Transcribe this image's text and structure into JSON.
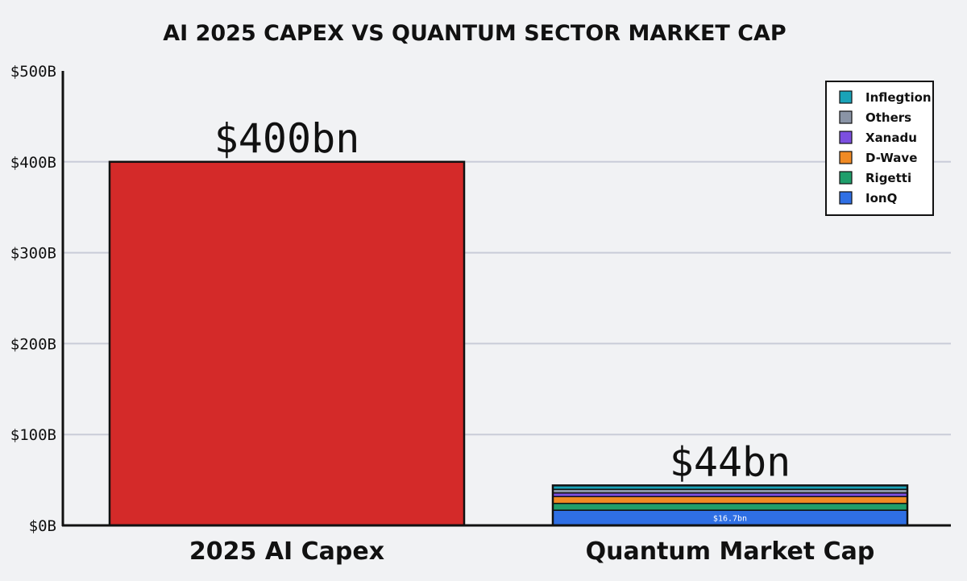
{
  "colors": {
    "background": "#f1f2f4",
    "grid": "#c9ccd8",
    "ai_capex": "#d42a29",
    "IonQ": "#2f6fe4",
    "Rigetti": "#1f9e6b",
    "D-Wave": "#f08a24",
    "Xanadu": "#7c4fe0",
    "Others": "#8a94a6",
    "Inflegtion": "#1aa3b8"
  },
  "chart_data": {
    "type": "bar",
    "title": "AI 2025 CAPEX VS QUANTUM SECTOR MARKET CAP",
    "xlabel": "",
    "ylabel": "",
    "ylim": [
      0,
      500
    ],
    "y_ticks": [
      0,
      100,
      200,
      300,
      400,
      500
    ],
    "y_tick_labels": [
      "$0B",
      "$100B",
      "$200B",
      "$300B",
      "$400B",
      "$500B"
    ],
    "grid": true,
    "legend_position": "top-right",
    "categories": [
      "2025 AI Capex",
      "Quantum Market Cap"
    ],
    "totals": [
      400,
      44
    ],
    "total_labels": [
      "$400bn",
      "$44bn"
    ],
    "single_series": {
      "category": "2025 AI Capex",
      "value": 400
    },
    "stacked_series": [
      {
        "name": "IonQ",
        "value": 16.7,
        "label": "$16.7bn"
      },
      {
        "name": "Rigetti",
        "value": 7.5,
        "label": ""
      },
      {
        "name": "D-Wave",
        "value": 7.5,
        "label": ""
      },
      {
        "name": "Xanadu",
        "value": 4.0,
        "label": ""
      },
      {
        "name": "Others",
        "value": 4.0,
        "label": ""
      },
      {
        "name": "Inflegtion",
        "value": 4.3,
        "label": ""
      }
    ],
    "legend": [
      "Inflegtion",
      "Others",
      "Xanadu",
      "D-Wave",
      "Rigetti",
      "IonQ"
    ]
  }
}
